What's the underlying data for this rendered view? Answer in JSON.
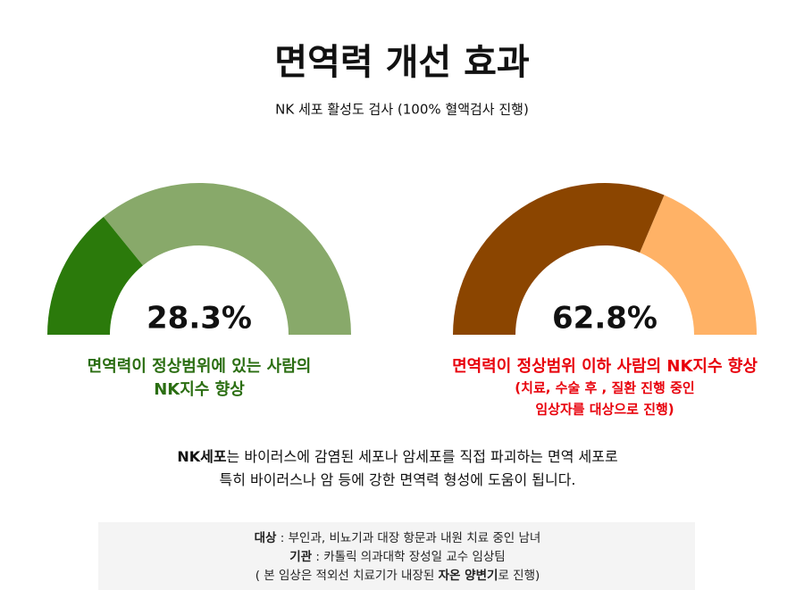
{
  "title": "면역력 개선 효과",
  "subtitle": "NK 세포 활성도 검사 (100% 혈액검사 진행)",
  "chart_data": [
    {
      "type": "gauge",
      "values": [
        28.3
      ],
      "value_labels": [
        "28.3%"
      ],
      "ylim": [
        0,
        100
      ],
      "colors": [
        "#2b7a0b",
        "#88a96a"
      ],
      "caption_color": "#2b6e12",
      "caption": [
        "면역력이 정상범위에 있는 사람의",
        "NK지수 향상"
      ],
      "note": []
    },
    {
      "type": "gauge",
      "values": [
        62.8
      ],
      "value_labels": [
        "62.8%"
      ],
      "ylim": [
        0,
        100
      ],
      "colors": [
        "#8b4500",
        "#ffb266"
      ],
      "caption_color": "#e8000b",
      "caption": [
        "면역력이 정상범위 이하 사람의 NK지수 향상"
      ],
      "note": [
        "(치료, 수술 후 , 질환 진행 중인",
        "임상자를 대상으로 진행)"
      ]
    }
  ],
  "description": [
    [
      {
        "text": "NK세포",
        "bold": true
      },
      {
        "text": "는 바이러스에 감염된 세포나 암세포를 직접 파괴하는 면역 세포로",
        "bold": false
      }
    ],
    [
      {
        "text": "특히 바이러스나 암 등에 강한 면역력 형성에 도움이 됩니다.",
        "bold": false
      }
    ]
  ],
  "info": [
    [
      {
        "text": "대상",
        "bold": true
      },
      {
        "text": " : 부인과, 비뇨기과 대장 항문과 내원 치료 중인 남녀",
        "bold": false
      }
    ],
    [
      {
        "text": "기관",
        "bold": true
      },
      {
        "text": " : 카톨릭 의과대학  장성일 교수 임상팀",
        "bold": false
      }
    ],
    [
      {
        "text": "( 본 임상은 적외선 치료기가 내장된 ",
        "bold": false
      },
      {
        "text": "자온 양변기",
        "bold": true
      },
      {
        "text": "로 진행)",
        "bold": false
      }
    ]
  ]
}
